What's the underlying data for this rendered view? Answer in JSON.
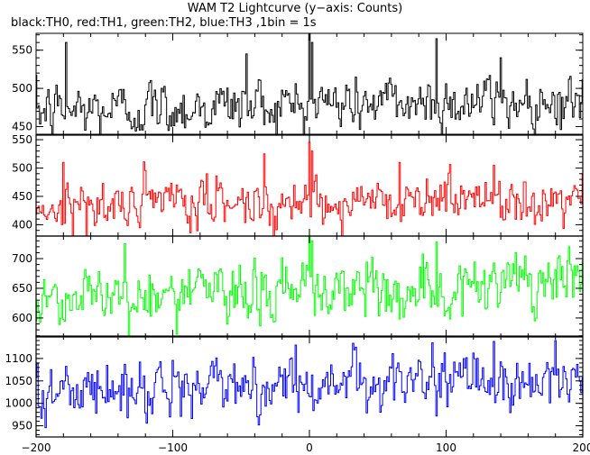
{
  "chart_data": {
    "type": "line",
    "title": "WAM T2 Lightcurve (y−axis: Counts)",
    "subtitle": "black:TH0, red:TH1, green:TH2, blue:TH3 ,1bin = 1s",
    "xlim": [
      -200,
      200
    ],
    "x_ticks": [
      -200,
      -100,
      0,
      100,
      200
    ],
    "x_tick_labels": [
      "−200",
      "−100",
      "0",
      "100",
      "200"
    ],
    "grid": false,
    "bin_seconds": 1,
    "panels": [
      {
        "series_name": "TH0",
        "color": "#000000",
        "ylim": [
          440,
          572
        ],
        "y_ticks": [
          450,
          500,
          550
        ],
        "mean": 478,
        "noise": 17,
        "trend": [
          [
            -200,
            470
          ],
          [
            -100,
            475
          ],
          [
            0,
            480
          ],
          [
            100,
            482
          ],
          [
            200,
            485
          ]
        ],
        "spikes": [
          [
            -178,
            560
          ],
          [
            -46,
            545
          ],
          [
            0,
            578
          ],
          [
            2,
            560
          ],
          [
            93,
            565
          ],
          [
            140,
            540
          ]
        ]
      },
      {
        "series_name": "TH1",
        "color": "#ff0000",
        "ylim": [
          380,
          558
        ],
        "y_ticks": [
          400,
          450,
          500,
          550
        ],
        "mean": 440,
        "noise": 20,
        "trend": [
          [
            -200,
            432
          ],
          [
            -100,
            436
          ],
          [
            0,
            441
          ],
          [
            100,
            446
          ],
          [
            200,
            448
          ]
        ],
        "spikes": [
          [
            -180,
            510
          ],
          [
            -33,
            525
          ],
          [
            0,
            545
          ],
          [
            2,
            530
          ],
          [
            66,
            510
          ],
          [
            135,
            505
          ]
        ]
      },
      {
        "series_name": "TH2",
        "color": "#00ff00",
        "ylim": [
          568,
          738
        ],
        "y_ticks": [
          600,
          650,
          700
        ],
        "mean": 645,
        "noise": 24,
        "trend": [
          [
            -200,
            635
          ],
          [
            -100,
            640
          ],
          [
            0,
            645
          ],
          [
            100,
            650
          ],
          [
            200,
            655
          ]
        ],
        "spikes": [
          [
            -135,
            725
          ],
          [
            0,
            738
          ],
          [
            2,
            730
          ],
          [
            93,
            728
          ],
          [
            190,
            720
          ]
        ]
      },
      {
        "series_name": "TH3",
        "color": "#0000ff",
        "ylim": [
          925,
          1150
        ],
        "y_ticks": [
          950,
          1000,
          1050,
          1100
        ],
        "mean": 1040,
        "noise": 28,
        "trend": [
          [
            -200,
            1025
          ],
          [
            -100,
            1035
          ],
          [
            0,
            1045
          ],
          [
            100,
            1048
          ],
          [
            200,
            1052
          ]
        ],
        "spikes": [
          [
            -10,
            1130
          ],
          [
            90,
            1135
          ],
          [
            135,
            1138
          ],
          [
            180,
            1140
          ]
        ]
      }
    ]
  }
}
